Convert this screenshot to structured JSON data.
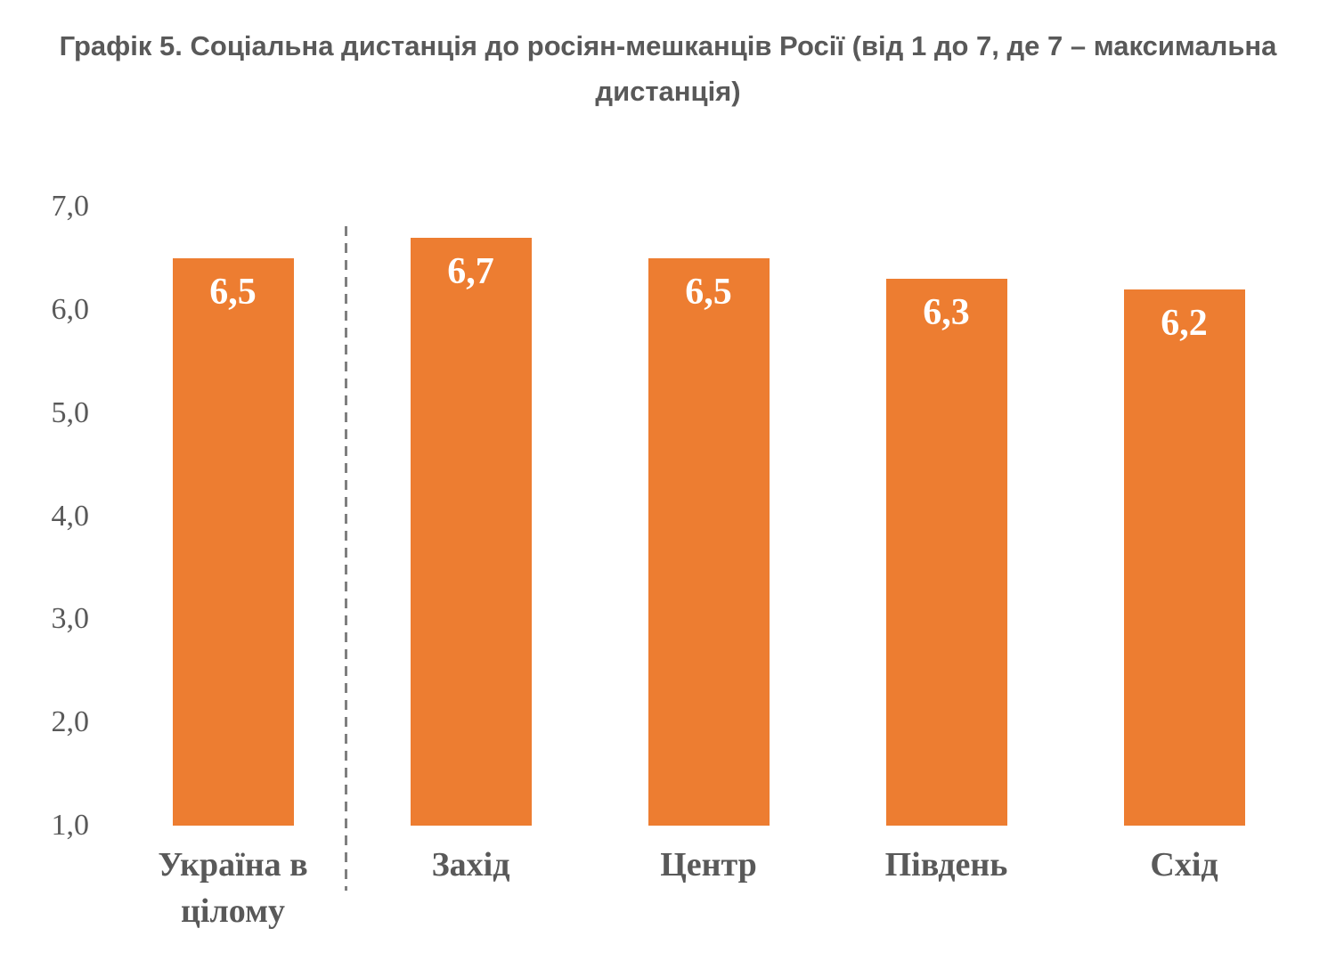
{
  "title": "Графік 5. Соціальна дистанція до росіян-мешканців Росії (від 1 до 7, де 7 – максимальна дистанція)",
  "colors": {
    "background": "#FFFFFF",
    "bar_fill": "#ED7D31",
    "title_text": "#595959",
    "axis_text": "#595959",
    "data_label_text": "#FFFFFF",
    "separator_line": "#7F7F7F"
  },
  "chart_data": {
    "type": "bar",
    "title": "Графік 5. Соціальна дистанція до росіян-мешканців Росії (від 1 до 7, де 7 – максимальна дистанція)",
    "categories": [
      "Україна в цілому",
      "Захід",
      "Центр",
      "Південь",
      "Схід"
    ],
    "values": [
      6.5,
      6.7,
      6.5,
      6.3,
      6.2
    ],
    "value_labels": [
      "6,5",
      "6,7",
      "6,5",
      "6,3",
      "6,2"
    ],
    "xlabel": "",
    "ylabel": "",
    "ylim": [
      1.0,
      7.0
    ],
    "yticks": [
      7.0,
      6.0,
      5.0,
      4.0,
      3.0,
      2.0,
      1.0
    ],
    "ytick_labels": [
      "7,0",
      "6,0",
      "5,0",
      "4,0",
      "3,0",
      "2,0",
      "1,0"
    ],
    "grid": false,
    "legend": false,
    "decimal_separator": ",",
    "separator_line_after_category_index": 0
  }
}
